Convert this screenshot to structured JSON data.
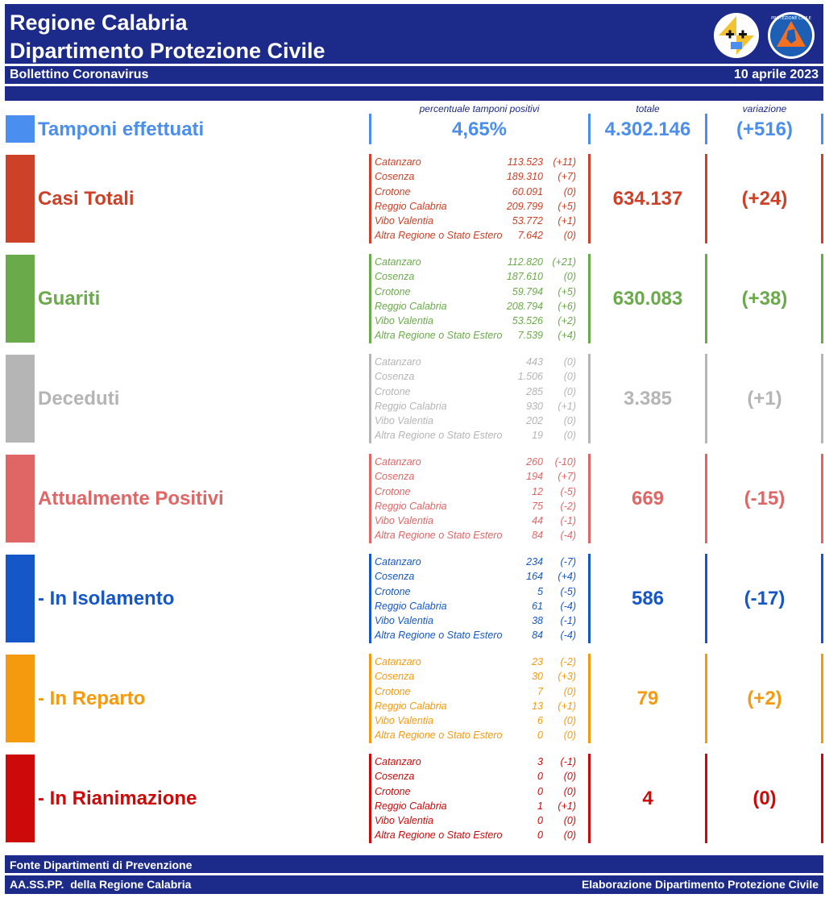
{
  "header": {
    "title1": "Regione Calabria",
    "title2": "Dipartimento Protezione Civile",
    "subtitle": "Bollettino Coronavirus",
    "date": "10 aprile 2023"
  },
  "column_headers": {
    "percent": "percentuale tamponi positivi",
    "total": "totale",
    "variation": "variazione"
  },
  "tamponi": {
    "label": "Tamponi effettuati",
    "percent": "4,65%",
    "total": "4.302.146",
    "variation": "(+516)",
    "color": "#4a8ef0"
  },
  "sections": [
    {
      "label": "Casi Totali",
      "color": "#cc4127",
      "total": "634.137",
      "variation": "(+24)",
      "provinces": [
        {
          "name": "Catanzaro",
          "value": "113.523",
          "var": "(+11)"
        },
        {
          "name": "Cosenza",
          "value": "189.310",
          "var": "(+7)"
        },
        {
          "name": "Crotone",
          "value": "60.091",
          "var": "(0)"
        },
        {
          "name": "Reggio Calabria",
          "value": "209.799",
          "var": "(+5)"
        },
        {
          "name": "Vibo Valentia",
          "value": "53.772",
          "var": "(+1)"
        },
        {
          "name": "Altra Regione o Stato Estero",
          "value": "7.642",
          "var": "(0)"
        }
      ]
    },
    {
      "label": "Guariti",
      "color": "#6aaa4a",
      "total": "630.083",
      "variation": "(+38)",
      "provinces": [
        {
          "name": "Catanzaro",
          "value": "112.820",
          "var": "(+21)"
        },
        {
          "name": "Cosenza",
          "value": "187.610",
          "var": "(0)"
        },
        {
          "name": "Crotone",
          "value": "59.794",
          "var": "(+5)"
        },
        {
          "name": "Reggio Calabria",
          "value": "208.794",
          "var": "(+6)"
        },
        {
          "name": "Vibo Valentia",
          "value": "53.526",
          "var": "(+2)"
        },
        {
          "name": "Altra Regione o Stato Estero",
          "value": "7.539",
          "var": "(+4)"
        }
      ]
    },
    {
      "label": "Deceduti",
      "color": "#b5b5b5",
      "total": "3.385",
      "variation": "(+1)",
      "provinces": [
        {
          "name": "Catanzaro",
          "value": "443",
          "var": "(0)"
        },
        {
          "name": "Cosenza",
          "value": "1.506",
          "var": "(0)"
        },
        {
          "name": "Crotone",
          "value": "285",
          "var": "(0)"
        },
        {
          "name": "Reggio Calabria",
          "value": "930",
          "var": "(+1)"
        },
        {
          "name": "Vibo Valentia",
          "value": "202",
          "var": "(0)"
        },
        {
          "name": "Altra Regione o Stato Estero",
          "value": "19",
          "var": "(0)"
        }
      ]
    },
    {
      "label": "Attualmente Positivi",
      "color": "#e06666",
      "total": "669",
      "variation": "(-15)",
      "provinces": [
        {
          "name": "Catanzaro",
          "value": "260",
          "var": "(-10)"
        },
        {
          "name": "Cosenza",
          "value": "194",
          "var": "(+7)"
        },
        {
          "name": "Crotone",
          "value": "12",
          "var": "(-5)"
        },
        {
          "name": "Reggio Calabria",
          "value": "75",
          "var": "(-2)"
        },
        {
          "name": "Vibo Valentia",
          "value": "44",
          "var": "(-1)"
        },
        {
          "name": "Altra Regione o Stato Estero",
          "value": "84",
          "var": "(-4)"
        }
      ]
    },
    {
      "label": " - In Isolamento",
      "color": "#1557c8",
      "total": "586",
      "variation": "(-17)",
      "provinces": [
        {
          "name": "Catanzaro",
          "value": "234",
          "var": "(-7)"
        },
        {
          "name": "Cosenza",
          "value": "164",
          "var": "(+4)"
        },
        {
          "name": "Crotone",
          "value": "5",
          "var": "(-5)"
        },
        {
          "name": "Reggio Calabria",
          "value": "61",
          "var": "(-4)"
        },
        {
          "name": "Vibo Valentia",
          "value": "38",
          "var": "(-1)"
        },
        {
          "name": "Altra Regione o Stato Estero",
          "value": "84",
          "var": "(-4)"
        }
      ]
    },
    {
      "label": " - In Reparto",
      "color": "#f59a0e",
      "total": "79",
      "variation": "(+2)",
      "provinces": [
        {
          "name": "Catanzaro",
          "value": "23",
          "var": "(-2)"
        },
        {
          "name": "Cosenza",
          "value": "30",
          "var": "(+3)"
        },
        {
          "name": "Crotone",
          "value": "7",
          "var": "(0)"
        },
        {
          "name": "Reggio Calabria",
          "value": "13",
          "var": "(+1)"
        },
        {
          "name": "Vibo Valentia",
          "value": "6",
          "var": "(0)"
        },
        {
          "name": "Altra Regione o Stato Estero",
          "value": "0",
          "var": "(0)"
        }
      ]
    },
    {
      "label": " - In Rianimazione",
      "color": "#cc0a0a",
      "total": "4",
      "variation": "(0)",
      "provinces": [
        {
          "name": "Catanzaro",
          "value": "3",
          "var": "(-1)"
        },
        {
          "name": "Cosenza",
          "value": "0",
          "var": "(0)"
        },
        {
          "name": "Crotone",
          "value": "0",
          "var": "(0)"
        },
        {
          "name": "Reggio Calabria",
          "value": "1",
          "var": "(+1)"
        },
        {
          "name": "Vibo Valentia",
          "value": "0",
          "var": "(0)"
        },
        {
          "name": "Altra Regione o Stato Estero",
          "value": "0",
          "var": "(0)"
        }
      ]
    }
  ],
  "footer": {
    "line1": "Fonte Dipartimenti di Prevenzione",
    "line2": "AA.SS.PP.  della Regione Calabria",
    "right": "Elaborazione Dipartimento Protezione Civile"
  },
  "logos": {
    "left": "regione-calabria-crest",
    "right": "protezione-civile-emblem"
  }
}
